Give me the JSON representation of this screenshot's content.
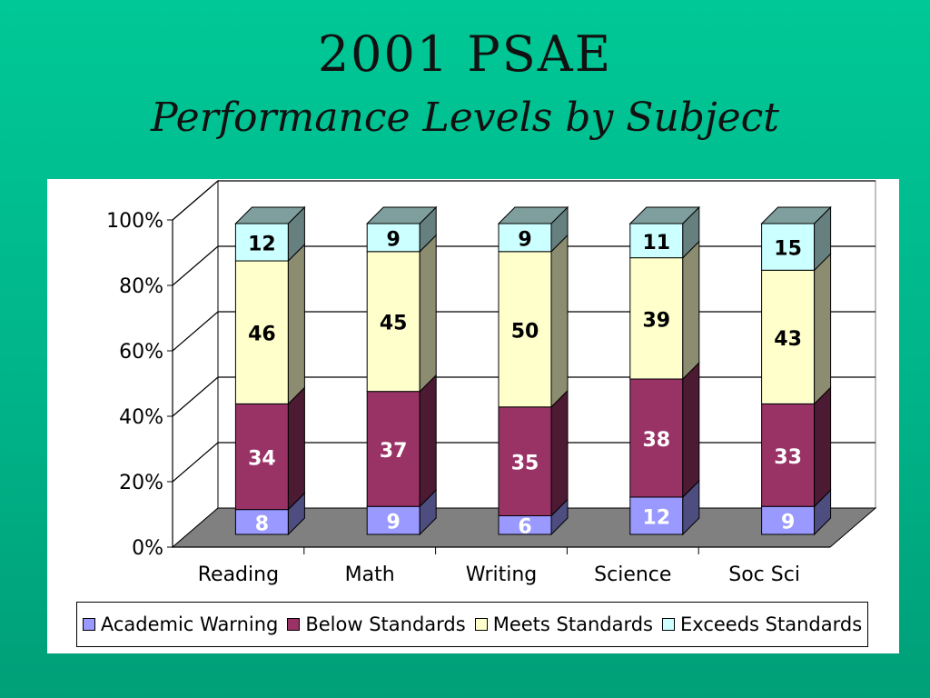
{
  "header": {
    "title": "2001 PSAE",
    "subtitle": "Performance Levels by Subject"
  },
  "chart_data": {
    "type": "bar",
    "stacked": true,
    "percent_stacked": true,
    "three_d": true,
    "categories": [
      "Reading",
      "Math",
      "Writing",
      "Science",
      "Soc Sci"
    ],
    "series": [
      {
        "name": "Academic Warning",
        "color": "#9999ff",
        "values": [
          8,
          9,
          6,
          12,
          9
        ]
      },
      {
        "name": "Below Standards",
        "color": "#993366",
        "values": [
          34,
          37,
          35,
          38,
          33
        ]
      },
      {
        "name": "Meets Standards",
        "color": "#ffffcc",
        "values": [
          46,
          45,
          50,
          39,
          43
        ]
      },
      {
        "name": "Exceeds Standards",
        "color": "#ccffff",
        "values": [
          12,
          9,
          9,
          11,
          15
        ]
      }
    ],
    "yticks": [
      "0%",
      "20%",
      "40%",
      "60%",
      "80%",
      "100%"
    ],
    "ylim": [
      0,
      100
    ],
    "grid": true,
    "legend_position": "bottom",
    "label_colors": {
      "Academic Warning": "#ffffff",
      "Below Standards": "#ffffff",
      "Meets Standards": "#000000",
      "Exceeds Standards": "#000000"
    }
  }
}
